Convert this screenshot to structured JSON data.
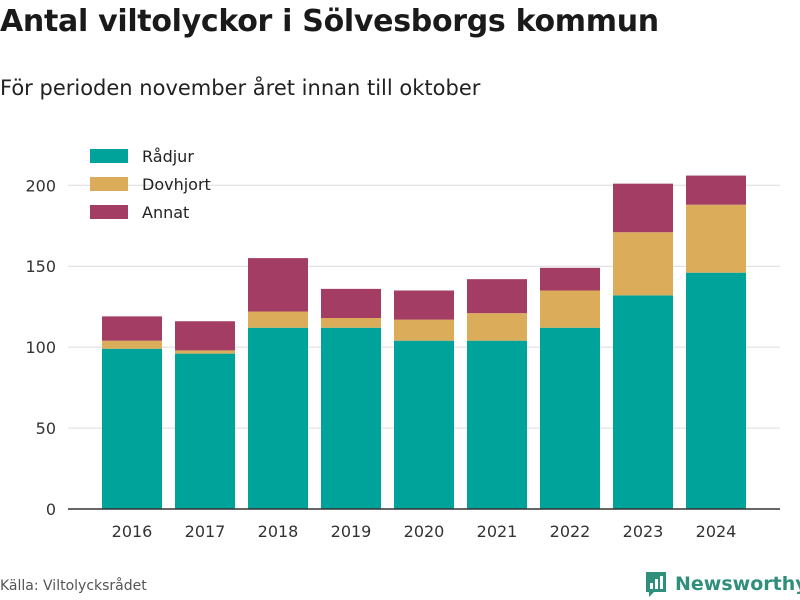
{
  "title": "Antal viltolyckor i Sölvesborgs kommun",
  "subtitle": "För perioden november året innan till oktober",
  "source": "Källa: Viltolycksrådet",
  "brand": "Newsworthy",
  "colors": {
    "radjur": "#00a39a",
    "dovhjort": "#dbad5a",
    "annat": "#a33d63",
    "grid": "#dcdcdc",
    "brand": "#2f8f7c"
  },
  "chart_data": {
    "type": "bar",
    "stacked": true,
    "categories": [
      "2016",
      "2017",
      "2018",
      "2019",
      "2020",
      "2021",
      "2022",
      "2023",
      "2024"
    ],
    "series": [
      {
        "name": "Rådjur",
        "color": "#00a39a",
        "values": [
          99,
          96,
          112,
          112,
          104,
          104,
          112,
          132,
          146
        ]
      },
      {
        "name": "Dovhjort",
        "color": "#dbad5a",
        "values": [
          5,
          2,
          10,
          6,
          13,
          17,
          23,
          39,
          42
        ]
      },
      {
        "name": "Annat",
        "color": "#a33d63",
        "values": [
          15,
          18,
          33,
          18,
          18,
          21,
          14,
          30,
          18
        ]
      }
    ],
    "ylim": [
      0,
      215
    ],
    "yticks": [
      0,
      50,
      100,
      150,
      200
    ],
    "grid": true,
    "legend": "top-left"
  }
}
